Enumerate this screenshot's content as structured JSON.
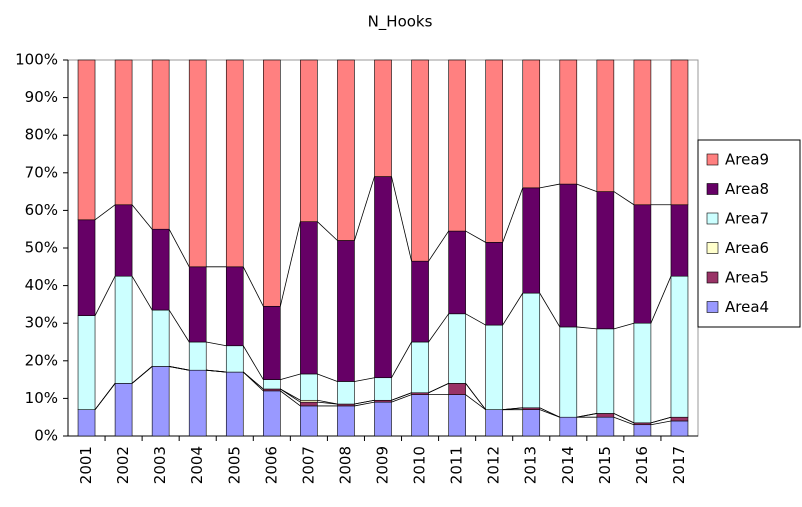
{
  "chart_data": {
    "type": "stacked-bar-100",
    "title": "N_Hooks",
    "categories": [
      "2001",
      "2002",
      "2003",
      "2004",
      "2005",
      "2006",
      "2007",
      "2008",
      "2009",
      "2010",
      "2011",
      "2012",
      "2013",
      "2014",
      "2015",
      "2016",
      "2017"
    ],
    "series": [
      {
        "name": "Area4",
        "color": "#9999FF",
        "values": [
          7,
          14,
          18.5,
          17.5,
          17,
          12,
          8,
          8,
          9,
          11,
          11,
          7,
          7,
          5,
          5,
          3,
          4
        ]
      },
      {
        "name": "Area5",
        "color": "#993366",
        "values": [
          0,
          0,
          0,
          0,
          0,
          0.5,
          1,
          0.5,
          0.5,
          0.5,
          3,
          0,
          0.5,
          0,
          1,
          0.5,
          1
        ]
      },
      {
        "name": "Area6",
        "color": "#FFFFCC",
        "values": [
          0,
          0,
          0,
          0,
          0,
          0,
          0.5,
          0,
          0,
          0,
          0,
          0,
          0,
          0,
          0,
          0,
          0
        ]
      },
      {
        "name": "Area7",
        "color": "#CCFFFF",
        "values": [
          25,
          28.5,
          15,
          7.5,
          7,
          2.5,
          7,
          6,
          6,
          13.5,
          18.5,
          22.5,
          30.5,
          24,
          22.5,
          26.5,
          37.5
        ]
      },
      {
        "name": "Area8",
        "color": "#660066",
        "values": [
          25.5,
          19,
          21.5,
          20,
          21,
          19.5,
          40.5,
          37.5,
          53.5,
          21.5,
          22,
          22,
          28,
          38,
          36.5,
          31.5,
          19
        ]
      },
      {
        "name": "Area9",
        "color": "#FF8080",
        "values": [
          42.5,
          38.5,
          45,
          55,
          55,
          65.5,
          43,
          48,
          31,
          53.5,
          45.5,
          48.5,
          34,
          33,
          35,
          38.5,
          38.5
        ]
      }
    ],
    "ylim": [
      0,
      100
    ],
    "yticks": [
      {
        "value": 0,
        "label": "0%"
      },
      {
        "value": 10,
        "label": "10%"
      },
      {
        "value": 20,
        "label": "20%"
      },
      {
        "value": 30,
        "label": "30%"
      },
      {
        "value": 40,
        "label": "40%"
      },
      {
        "value": 50,
        "label": "50%"
      },
      {
        "value": 60,
        "label": "60%"
      },
      {
        "value": 70,
        "label": "70%"
      },
      {
        "value": 80,
        "label": "80%"
      },
      {
        "value": 90,
        "label": "90%"
      },
      {
        "value": 100,
        "label": "100%"
      }
    ],
    "legend": "right"
  }
}
